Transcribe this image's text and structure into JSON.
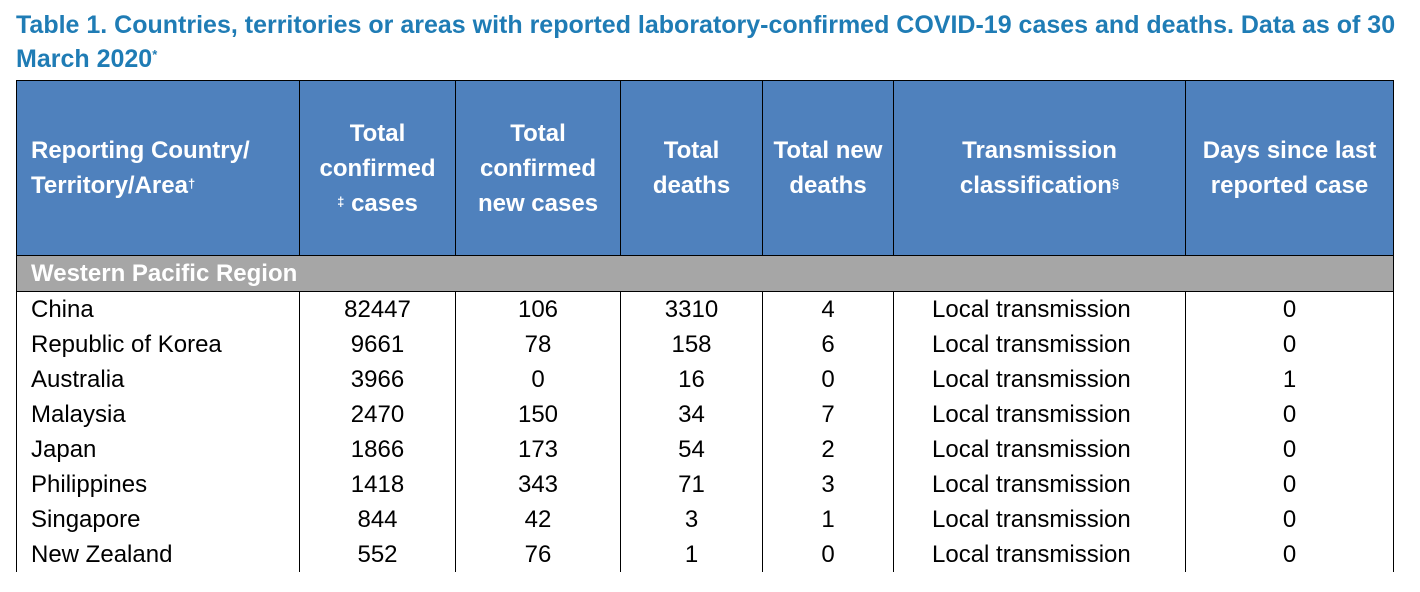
{
  "caption": {
    "text": "Table 1. Countries, territories or areas with reported laboratory-confirmed COVID-19 cases and deaths. Data as of 30 March 2020",
    "mark": "*"
  },
  "headers": {
    "col1": {
      "text": "Reporting Country/ Territory/Area",
      "mark": "†"
    },
    "col2": {
      "pre": "Total confirmed",
      "mark": "‡",
      "post": " cases"
    },
    "col3": "Total confirmed new cases",
    "col4": "Total deaths",
    "col5": "Total new deaths",
    "col6": {
      "text": "Transmission classification",
      "mark": "§"
    },
    "col7": "Days since last reported case"
  },
  "region": "Western Pacific Region",
  "rows": [
    {
      "name": "China",
      "cases": "82447",
      "new_cases": "106",
      "deaths": "3310",
      "new_deaths": "4",
      "transmission": "Local transmission",
      "days": "0"
    },
    {
      "name": "Republic of Korea",
      "cases": "9661",
      "new_cases": "78",
      "deaths": "158",
      "new_deaths": "6",
      "transmission": "Local transmission",
      "days": "0"
    },
    {
      "name": "Australia",
      "cases": "3966",
      "new_cases": "0",
      "deaths": "16",
      "new_deaths": "0",
      "transmission": "Local transmission",
      "days": "1"
    },
    {
      "name": "Malaysia",
      "cases": "2470",
      "new_cases": "150",
      "deaths": "34",
      "new_deaths": "7",
      "transmission": "Local transmission",
      "days": "0"
    },
    {
      "name": "Japan",
      "cases": "1866",
      "new_cases": "173",
      "deaths": "54",
      "new_deaths": "2",
      "transmission": "Local transmission",
      "days": "0"
    },
    {
      "name": "Philippines",
      "cases": "1418",
      "new_cases": "343",
      "deaths": "71",
      "new_deaths": "3",
      "transmission": "Local transmission",
      "days": "0"
    },
    {
      "name": "Singapore",
      "cases": "844",
      "new_cases": "42",
      "deaths": "3",
      "new_deaths": "1",
      "transmission": "Local transmission",
      "days": "0"
    },
    {
      "name": "New Zealand",
      "cases": "552",
      "new_cases": "76",
      "deaths": "1",
      "new_deaths": "0",
      "transmission": "Local transmission",
      "days": "0"
    }
  ]
}
